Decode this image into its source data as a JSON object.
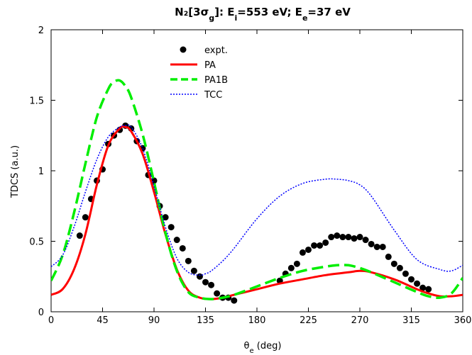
{
  "chart_data": {
    "type": "line",
    "title": "N₂[3σg]: Ei=553 eV; Ee=37 eV",
    "xlabel": "θe (deg)",
    "ylabel": "TDCS (a.u.)",
    "xlim": [
      0,
      360
    ],
    "ylim": [
      0,
      2
    ],
    "xticks": [
      0,
      45,
      90,
      135,
      180,
      225,
      270,
      315,
      360
    ],
    "yticks": [
      0,
      0.5,
      1,
      1.5,
      2
    ],
    "ytick_labels": [
      "0",
      "0.5",
      "1",
      "1.5",
      "2"
    ],
    "grid": false,
    "legend_position": "top-center",
    "series": [
      {
        "name": "expt.",
        "style": "markers",
        "color": "#000000",
        "x": [
          25,
          30,
          35,
          40,
          45,
          50,
          55,
          60,
          65,
          70,
          75,
          80,
          85,
          90,
          95,
          100,
          105,
          110,
          115,
          120,
          125,
          130,
          135,
          140,
          145,
          150,
          155,
          160,
          200,
          205,
          210,
          215,
          220,
          225,
          230,
          235,
          240,
          245,
          250,
          255,
          260,
          265,
          270,
          275,
          280,
          285,
          290,
          295,
          300,
          305,
          310,
          315,
          320,
          325,
          330
        ],
        "y": [
          0.54,
          0.67,
          0.8,
          0.93,
          1.01,
          1.19,
          1.25,
          1.29,
          1.32,
          1.3,
          1.21,
          1.16,
          0.97,
          0.93,
          0.75,
          0.67,
          0.6,
          0.51,
          0.45,
          0.36,
          0.29,
          0.25,
          0.21,
          0.19,
          0.13,
          0.1,
          0.1,
          0.08,
          0.22,
          0.27,
          0.31,
          0.34,
          0.42,
          0.44,
          0.47,
          0.47,
          0.49,
          0.53,
          0.54,
          0.53,
          0.53,
          0.52,
          0.53,
          0.51,
          0.48,
          0.46,
          0.46,
          0.39,
          0.34,
          0.31,
          0.27,
          0.23,
          0.2,
          0.17,
          0.16
        ]
      },
      {
        "name": "PA",
        "style": "solid",
        "color": "#ff0000",
        "x": [
          0,
          10,
          20,
          30,
          40,
          50,
          60,
          65,
          70,
          80,
          90,
          100,
          110,
          120,
          130,
          140,
          150,
          160,
          180,
          200,
          220,
          240,
          260,
          270,
          280,
          300,
          320,
          330,
          340,
          350,
          360
        ],
        "y": [
          0.12,
          0.16,
          0.3,
          0.55,
          0.9,
          1.18,
          1.3,
          1.31,
          1.28,
          1.12,
          0.85,
          0.55,
          0.3,
          0.15,
          0.1,
          0.09,
          0.1,
          0.12,
          0.16,
          0.2,
          0.23,
          0.26,
          0.28,
          0.29,
          0.28,
          0.23,
          0.16,
          0.13,
          0.11,
          0.11,
          0.12
        ]
      },
      {
        "name": "PA1B",
        "style": "dashed",
        "color": "#00ee00",
        "x": [
          0,
          10,
          20,
          30,
          40,
          50,
          55,
          60,
          65,
          70,
          80,
          90,
          100,
          110,
          120,
          130,
          140,
          150,
          160,
          180,
          200,
          220,
          240,
          250,
          260,
          270,
          280,
          300,
          320,
          330,
          340,
          350,
          360
        ],
        "y": [
          0.22,
          0.4,
          0.7,
          1.05,
          1.38,
          1.58,
          1.63,
          1.64,
          1.6,
          1.52,
          1.26,
          0.92,
          0.56,
          0.29,
          0.14,
          0.1,
          0.09,
          0.1,
          0.12,
          0.18,
          0.24,
          0.29,
          0.32,
          0.33,
          0.33,
          0.31,
          0.28,
          0.21,
          0.14,
          0.11,
          0.1,
          0.13,
          0.24
        ]
      },
      {
        "name": "TCC",
        "style": "dotted",
        "color": "#0000ff",
        "x": [
          0,
          10,
          20,
          30,
          40,
          50,
          60,
          65,
          70,
          80,
          90,
          100,
          110,
          120,
          130,
          135,
          140,
          150,
          160,
          180,
          200,
          220,
          240,
          250,
          260,
          270,
          280,
          300,
          320,
          340,
          350,
          360
        ],
        "y": [
          0.32,
          0.4,
          0.6,
          0.85,
          1.08,
          1.24,
          1.31,
          1.32,
          1.31,
          1.16,
          0.89,
          0.6,
          0.38,
          0.28,
          0.26,
          0.27,
          0.29,
          0.36,
          0.45,
          0.66,
          0.82,
          0.91,
          0.94,
          0.94,
          0.93,
          0.9,
          0.82,
          0.58,
          0.37,
          0.3,
          0.29,
          0.33
        ]
      }
    ]
  }
}
